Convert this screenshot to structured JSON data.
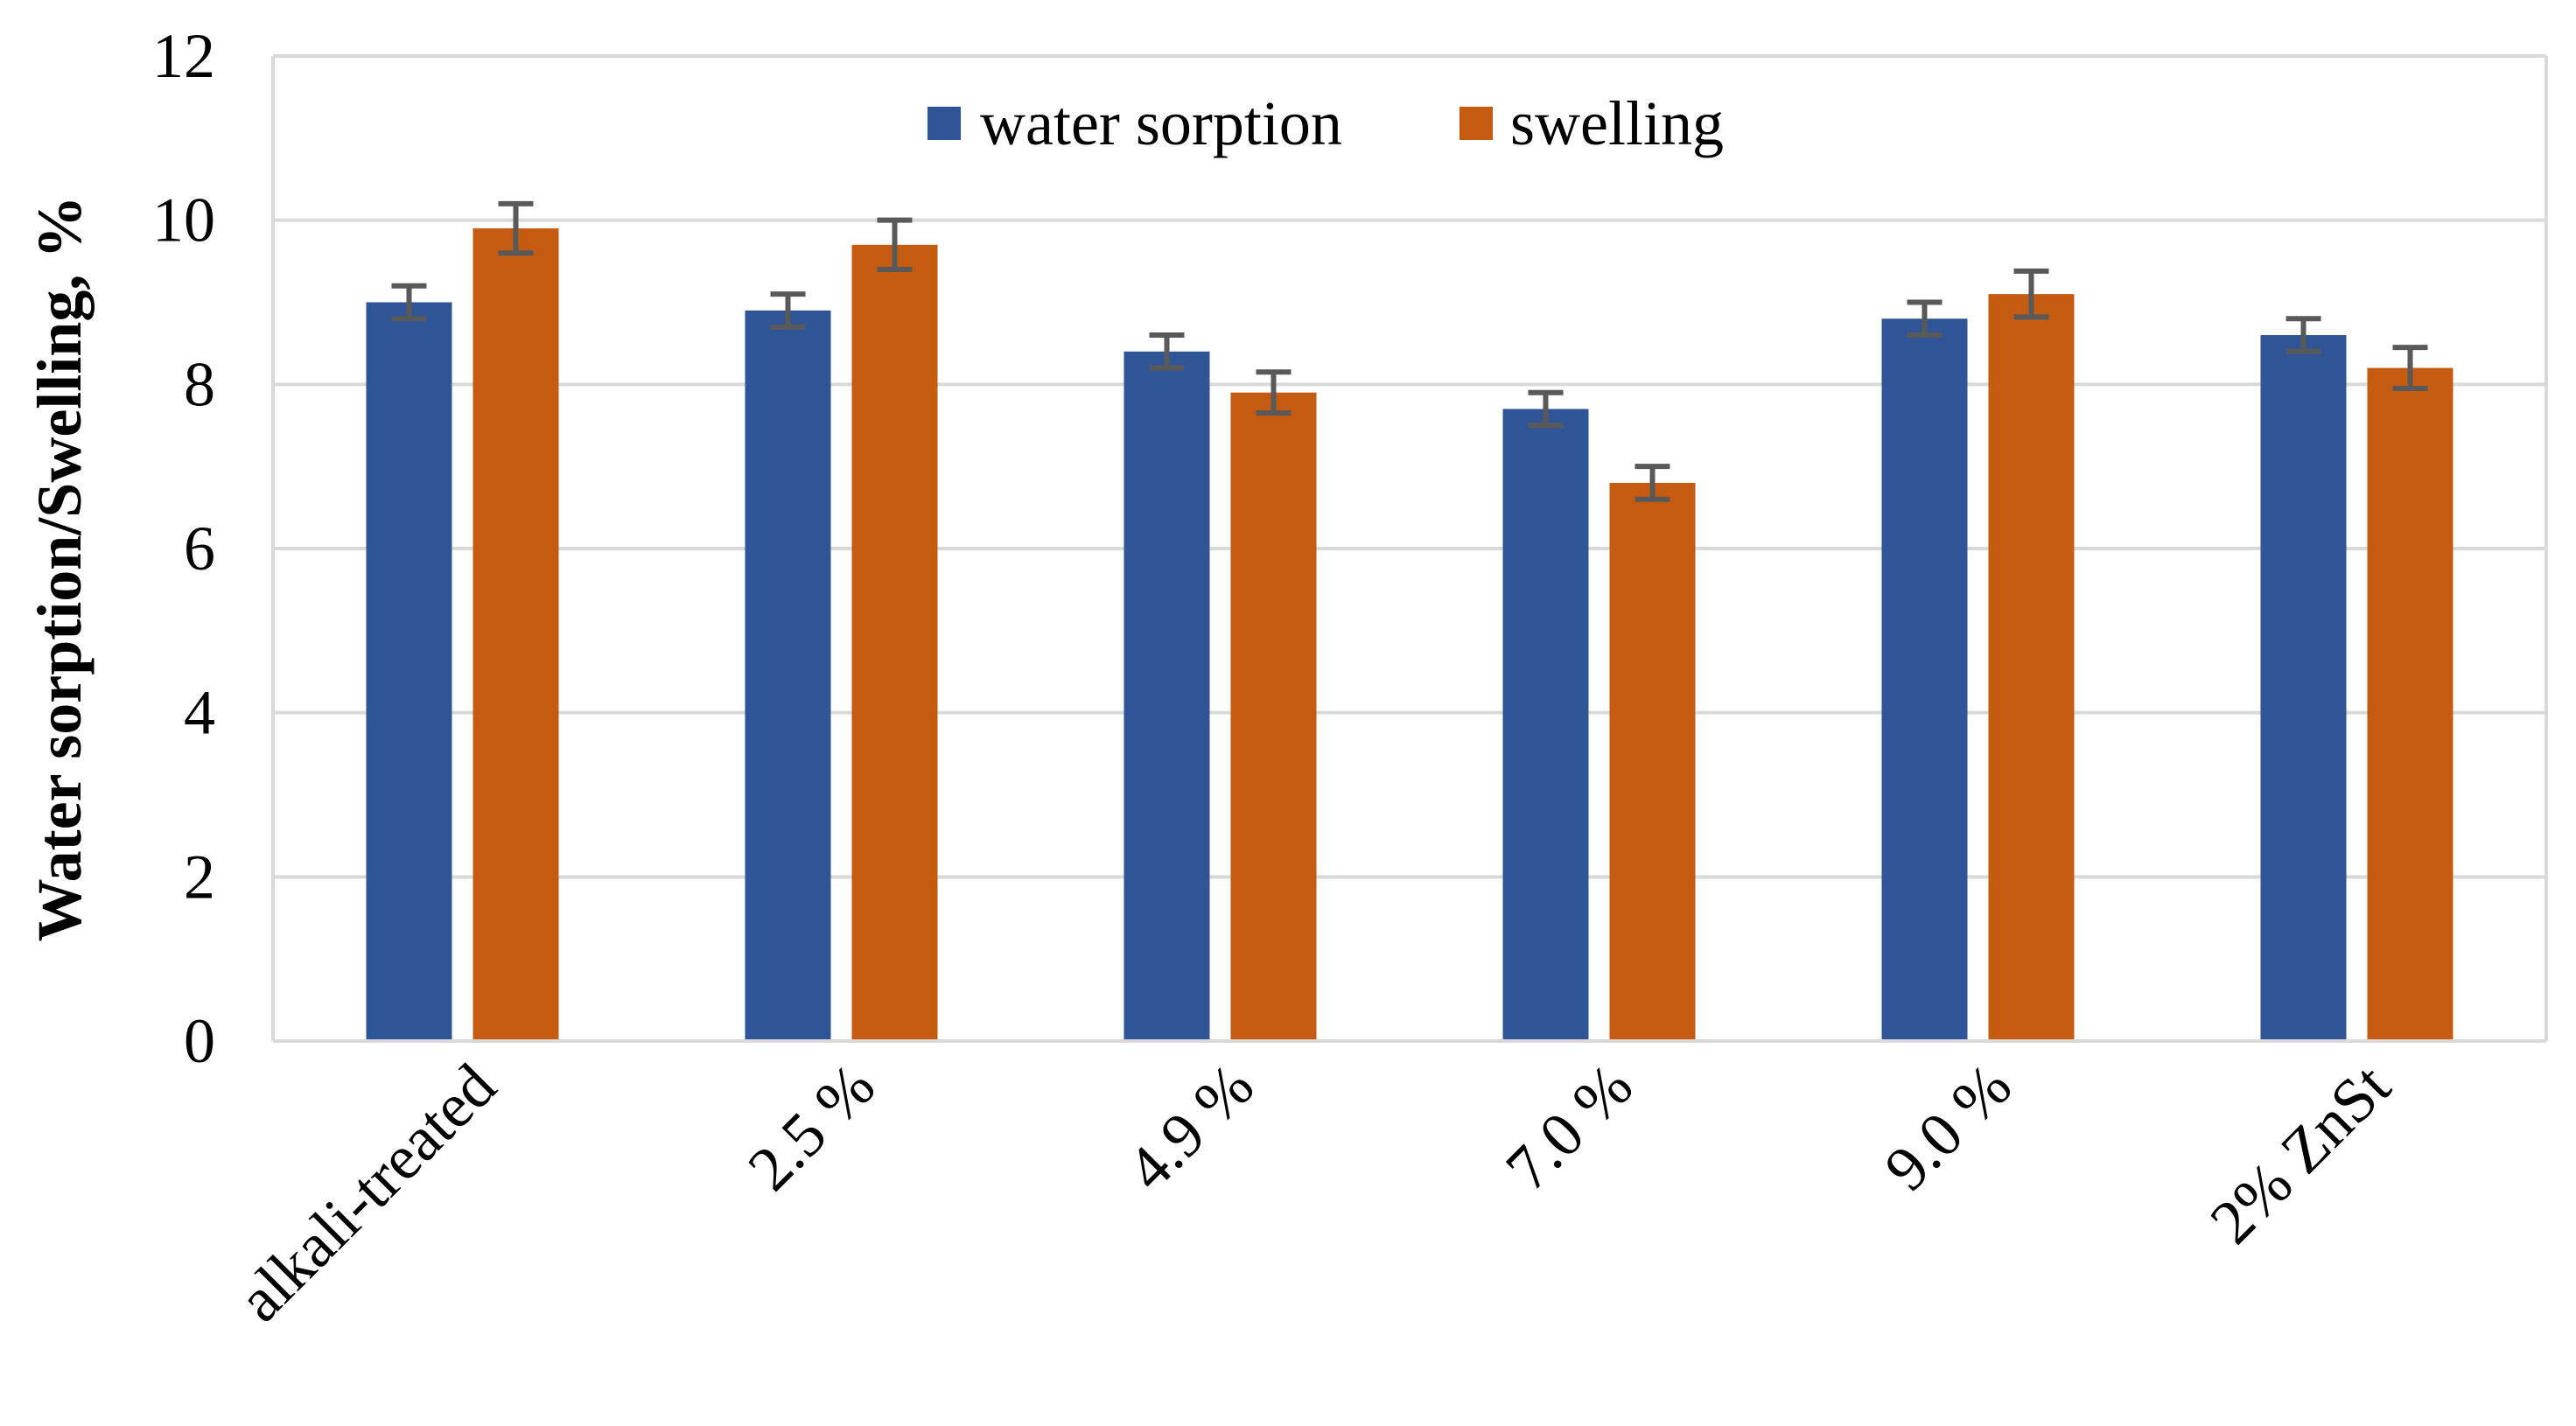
{
  "chart_data": {
    "type": "bar",
    "title": "",
    "xlabel": "",
    "ylabel": "Water sorption/Swelling, %",
    "ylim": [
      0,
      12
    ],
    "yticks": [
      0,
      2,
      4,
      6,
      8,
      10,
      12
    ],
    "grid": true,
    "legend_position": "top-center",
    "categories": [
      "alkali-treated",
      "2.5 %",
      "4.9 %",
      "7.0 %",
      "9.0 %",
      "2% ZnSt"
    ],
    "series": [
      {
        "name": "water sorption",
        "color": "#2F5597",
        "values": [
          9.0,
          8.9,
          8.4,
          7.7,
          8.8,
          8.6
        ],
        "errors": [
          0.2,
          0.2,
          0.2,
          0.2,
          0.2,
          0.2
        ]
      },
      {
        "name": "swelling",
        "color": "#C55A11",
        "values": [
          9.9,
          9.7,
          7.9,
          6.8,
          9.1,
          8.2
        ],
        "errors": [
          0.3,
          0.3,
          0.25,
          0.2,
          0.28,
          0.25
        ]
      }
    ],
    "error_bar_color": "#595959",
    "gridline_color": "#D9D9D9"
  }
}
